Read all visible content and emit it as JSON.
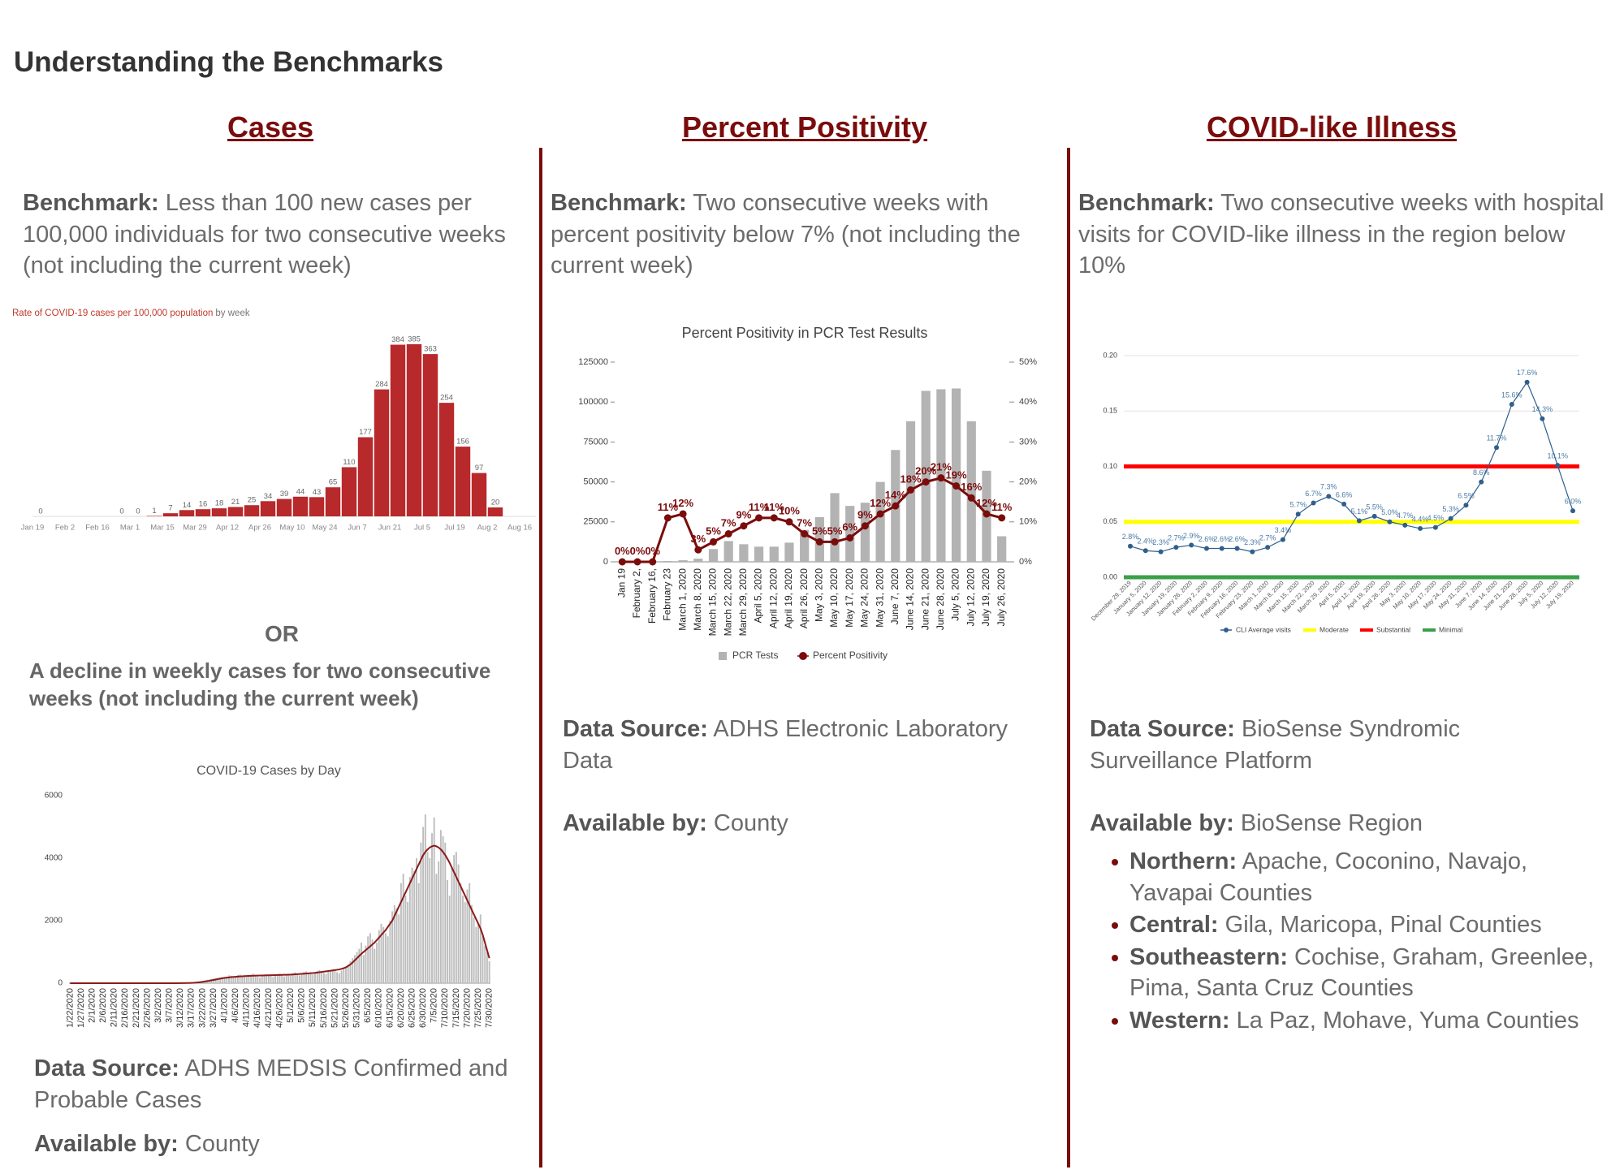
{
  "title": "Understanding the Benchmarks",
  "columns": [
    {
      "heading": "Cases",
      "benchmark_label": "Benchmark:",
      "benchmark": "Less than 100 new cases per 100,000 individuals for two consecutive weeks (not including the current week)",
      "or": "OR",
      "alternative": "A decline in weekly cases for two consecutive weeks (not including the current week)",
      "source_label": "Data Source:",
      "source": "ADHS MEDSIS Confirmed and Probable Cases",
      "available_label": "Available by:",
      "available": "County"
    },
    {
      "heading": "Percent Positivity",
      "benchmark_label": "Benchmark:",
      "benchmark": "Two consecutive weeks with percent positivity below 7% (not including the current week)",
      "source_label": "Data Source:",
      "source": "ADHS Electronic Laboratory Data",
      "available_label": "Available by:",
      "available": "County"
    },
    {
      "heading": "COVID-like Illness",
      "benchmark_label": "Benchmark:",
      "benchmark": "Two consecutive weeks with hospital visits for COVID-like illness in the region below 10%",
      "source_label": "Data Source:",
      "source": "BioSense Syndromic Surveillance Platform",
      "available_label": "Available by:",
      "available": "BioSense Region",
      "regions": [
        {
          "name": "Northern:",
          "counties": "Apache, Coconino, Navajo, Yavapai Counties"
        },
        {
          "name": "Central:",
          "counties": "Gila, Maricopa, Pinal Counties"
        },
        {
          "name": "Southeastern:",
          "counties": "Cochise, Graham, Greenlee, Pima, Santa Cruz Counties"
        },
        {
          "name": "Western:",
          "counties": "La Paz, Mohave, Yuma Counties"
        }
      ]
    }
  ],
  "chart_data": [
    {
      "type": "bar",
      "title": "Rate of COVID-19 cases per 100,000 population",
      "subtitle": "by week",
      "color": "#b8292b",
      "data_labels": true,
      "categories": [
        "Jan 19",
        null,
        "Feb 2",
        null,
        "Feb 16",
        null,
        "Mar 1",
        null,
        "Mar 15",
        null,
        "Mar 29",
        null,
        "Apr 12",
        null,
        "Apr 26",
        null,
        "May 10",
        null,
        "May 24",
        null,
        "Jun 7",
        null,
        "Jun 21",
        null,
        "Jul 5",
        null,
        "Jul 19",
        null,
        "Aug 2",
        null,
        "Aug 16"
      ],
      "values": [
        0,
        null,
        null,
        null,
        null,
        0,
        0,
        1,
        7,
        14,
        16,
        18,
        21,
        25,
        34,
        39,
        44,
        43,
        65,
        110,
        177,
        284,
        384,
        385,
        363,
        254,
        156,
        97,
        20,
        null,
        null
      ]
    },
    {
      "type": "bar",
      "title": "COVID-19 Cases by Day",
      "ylim": [
        0,
        6000
      ],
      "yticks": [
        0,
        2000,
        4000,
        6000
      ],
      "categories": [
        "1/22/2020",
        null,
        null,
        null,
        null,
        "1/27/2020",
        null,
        null,
        null,
        null,
        "2/1/2020",
        null,
        null,
        null,
        null,
        "2/6/2020",
        null,
        null,
        null,
        null,
        "2/11/2020",
        null,
        null,
        null,
        null,
        "2/16/2020",
        null,
        null,
        null,
        null,
        "2/21/2020",
        null,
        null,
        null,
        null,
        "2/26/2020",
        null,
        null,
        null,
        null,
        "3/2/2020",
        null,
        null,
        null,
        null,
        "3/7/2020",
        null,
        null,
        null,
        null,
        "3/12/2020",
        null,
        null,
        null,
        null,
        "3/17/2020",
        null,
        null,
        null,
        null,
        "3/22/2020",
        null,
        null,
        null,
        null,
        "3/27/2020",
        null,
        null,
        null,
        null,
        "4/1/2020",
        null,
        null,
        null,
        null,
        "4/6/2020",
        null,
        null,
        null,
        null,
        "4/11/2020",
        null,
        null,
        null,
        null,
        "4/16/2020",
        null,
        null,
        null,
        null,
        "4/21/2020",
        null,
        null,
        null,
        null,
        "4/26/2020",
        null,
        null,
        null,
        null,
        "5/1/2020",
        null,
        null,
        null,
        null,
        "5/6/2020",
        null,
        null,
        null,
        null,
        "5/11/2020",
        null,
        null,
        null,
        null,
        "5/16/2020",
        null,
        null,
        null,
        null,
        "5/21/2020",
        null,
        null,
        null,
        null,
        "5/26/2020",
        null,
        null,
        null,
        null,
        "5/31/2020",
        null,
        null,
        null,
        null,
        "6/5/2020",
        null,
        null,
        null,
        null,
        "6/10/2020",
        null,
        null,
        null,
        null,
        "6/15/2020",
        null,
        null,
        null,
        null,
        "6/20/2020",
        null,
        null,
        null,
        null,
        "6/25/2020",
        null,
        null,
        null,
        null,
        "6/30/2020",
        null,
        null,
        null,
        null,
        "7/5/2020",
        null,
        null,
        null,
        null,
        "7/10/2020",
        null,
        null,
        null,
        null,
        "7/15/2020",
        null,
        null,
        null,
        null,
        "7/20/2020",
        null,
        null,
        null,
        null,
        "7/25/2020",
        null,
        null,
        null,
        null,
        "7/30/2020"
      ],
      "series": [
        {
          "type": "bar",
          "color": "#bdbdbd",
          "values": [
            0,
            0,
            0,
            0,
            1,
            0,
            0,
            0,
            0,
            0,
            0,
            0,
            0,
            0,
            0,
            0,
            0,
            0,
            0,
            0,
            0,
            0,
            0,
            0,
            0,
            0,
            0,
            0,
            0,
            0,
            0,
            0,
            0,
            0,
            0,
            0,
            0,
            0,
            0,
            0,
            0,
            0,
            0,
            0,
            0,
            0,
            0,
            0,
            0,
            2,
            3,
            5,
            4,
            6,
            12,
            18,
            26,
            40,
            50,
            60,
            75,
            90,
            110,
            120,
            140,
            150,
            160,
            170,
            180,
            190,
            200,
            210,
            250,
            240,
            180,
            220,
            260,
            280,
            240,
            230,
            200,
            250,
            270,
            300,
            260,
            210,
            180,
            220,
            250,
            280,
            240,
            230,
            200,
            260,
            290,
            310,
            270,
            220,
            260,
            300,
            280,
            320,
            350,
            300,
            250,
            330,
            360,
            380,
            340,
            310,
            280,
            350,
            390,
            420,
            380,
            330,
            300,
            370,
            410,
            440,
            400,
            350,
            320,
            400,
            450,
            500,
            600,
            700,
            800,
            900,
            1000,
            1100,
            1300,
            900,
            1200,
            1500,
            1600,
            1400,
            1100,
            1300,
            1700,
            1900,
            1800,
            1600,
            1500,
            2000,
            2300,
            2500,
            2400,
            2200,
            3200,
            3500,
            2800,
            2600,
            3400,
            3700,
            3600,
            4000,
            3200,
            4500,
            5000,
            5400,
            4200,
            4000,
            4800,
            5300,
            3500,
            3900,
            4900,
            4700,
            4500,
            3300,
            2800,
            3700,
            4100,
            4200,
            3800,
            3200,
            2800,
            2600,
            3000,
            3200,
            2500,
            2100,
            1800,
            1900,
            2200,
            1500,
            1200,
            1000,
            700
          ]
        },
        {
          "type": "line",
          "color": "#8b1a1a",
          "values": [
            0,
            0,
            0,
            0,
            0,
            0,
            0,
            0,
            0,
            0,
            0,
            0,
            0,
            0,
            0,
            0,
            0,
            0,
            0,
            0,
            0,
            0,
            0,
            0,
            0,
            0,
            0,
            0,
            0,
            0,
            0,
            0,
            0,
            0,
            0,
            0,
            0,
            0,
            0,
            0,
            0,
            0,
            0,
            0,
            0,
            0,
            0,
            0,
            0,
            1,
            2,
            3,
            4,
            5,
            7,
            10,
            14,
            20,
            26,
            33,
            42,
            52,
            64,
            76,
            90,
            104,
            118,
            132,
            146,
            160,
            170,
            178,
            186,
            194,
            200,
            206,
            212,
            218,
            222,
            226,
            230,
            234,
            238,
            240,
            242,
            244,
            246,
            248,
            250,
            252,
            254,
            256,
            258,
            260,
            262,
            264,
            266,
            268,
            270,
            272,
            275,
            280,
            285,
            290,
            295,
            300,
            305,
            310,
            315,
            320,
            325,
            330,
            340,
            350,
            360,
            370,
            380,
            390,
            400,
            410,
            420,
            430,
            440,
            460,
            480,
            510,
            550,
            600,
            660,
            730,
            800,
            870,
            940,
            1000,
            1060,
            1120,
            1180,
            1240,
            1300,
            1380,
            1460,
            1540,
            1620,
            1700,
            1800,
            1900,
            2000,
            2150,
            2300,
            2450,
            2600,
            2750,
            2900,
            3050,
            3200,
            3350,
            3500,
            3650,
            3800,
            3950,
            4100,
            4200,
            4280,
            4340,
            4380,
            4400,
            4380,
            4340,
            4280,
            4200,
            4100,
            3980,
            3850,
            3700,
            3550,
            3400,
            3250,
            3100,
            2950,
            2800,
            2650,
            2500,
            2350,
            2200,
            2050,
            1900,
            1750,
            1550,
            1300,
            1050,
            800
          ]
        }
      ]
    },
    {
      "type": "bar",
      "title": "Percent Positivity in PCR Test Results",
      "ylim": [
        0,
        125000
      ],
      "yticks": [
        0,
        25000,
        50000,
        75000,
        100000,
        125000
      ],
      "y2lim": [
        0,
        50
      ],
      "y2ticks": [
        {
          "value": 0,
          "label": "0%"
        },
        {
          "value": 10,
          "label": "10%"
        },
        {
          "value": 20,
          "label": "20%"
        },
        {
          "value": 30,
          "label": "30%"
        },
        {
          "value": 40,
          "label": "40%"
        },
        {
          "value": 50,
          "label": "50%"
        }
      ],
      "categories": [
        "Jan 19",
        "February 2,",
        "February 16,",
        "February 23",
        "March 1, 2020",
        "March 8, 2020",
        "March 15, 2020",
        "March 22, 2020",
        "March 29, 2020",
        "April 5, 2020",
        "April 12, 2020",
        "April 19, 2020",
        "April 26, 2020",
        "May 3, 2020",
        "May 10, 2020",
        "May 17, 2020",
        "May 24, 2020",
        "May 31, 2020",
        "June 7, 2020",
        "June 14, 2020",
        "June 21, 2020",
        "June 28, 2020",
        "July 5, 2020",
        "July 12, 2020",
        "July 19, 2020",
        "July 26, 2020"
      ],
      "series": [
        {
          "name": "PCR Tests",
          "type": "bar",
          "color": "#b3b3b3",
          "values": [
            0,
            0,
            0,
            500,
            1000,
            2000,
            8000,
            13000,
            11000,
            9500,
            9500,
            12000,
            20000,
            28000,
            43000,
            35000,
            37000,
            50000,
            70000,
            88000,
            107000,
            108000,
            108500,
            88000,
            57000,
            16000
          ]
        },
        {
          "name": "Percent Positivity",
          "type": "line",
          "axis": "y2",
          "color": "#7b0c0c",
          "markers": true,
          "values": [
            0,
            0,
            0,
            11,
            12,
            3,
            5,
            7,
            9,
            11,
            11,
            10,
            7,
            5,
            5,
            6,
            9,
            12,
            14,
            18,
            20,
            21,
            19,
            16,
            12,
            11
          ],
          "value_labels": [
            "0%",
            "0%",
            "0%",
            "11%",
            "12%",
            "3%",
            "5%",
            "7%",
            "9%",
            "11%",
            "11%",
            "10%",
            "7%",
            "5%",
            "5%",
            "6%",
            "9%",
            "12%",
            "14%",
            "18%",
            "20%",
            "21%",
            "19%",
            "16%",
            "12%",
            "11%"
          ]
        }
      ]
    },
    {
      "type": "line",
      "grid": true,
      "ylim": [
        0,
        0.2
      ],
      "yticks": [
        {
          "value": 0,
          "label": "0.00"
        },
        0.05,
        {
          "value": 0.1,
          "label": "0.10"
        },
        0.15,
        {
          "value": 0.2,
          "label": "0.20"
        }
      ],
      "categories": [
        "December 29, 2019",
        "January 5, 2020",
        "January 12, 2020",
        "January 19, 2020",
        "January 26, 2020",
        "February 2, 2020",
        "February 9, 2020",
        "February 16, 2020",
        "February 23, 2020",
        "March 1, 2020",
        "March 8, 2020",
        "March 15, 2020",
        "March 22, 2020",
        "March 29, 2020",
        "April 5, 2020",
        "April 12, 2020",
        "April 19, 2020",
        "April 26, 2020",
        "May 3, 2020",
        "May 10, 2020",
        "May 17, 2020",
        "May 24, 2020",
        "May 31, 2020",
        "June 7, 2020",
        "June 14, 2020",
        "June 21, 2020",
        "June 28, 2020",
        "July 5, 2020",
        "July 12, 2020",
        "July 19, 2020"
      ],
      "thresholds": [
        {
          "name": "Moderate",
          "value": 0.05,
          "color": "#ffff00"
        },
        {
          "name": "Substantial",
          "value": 0.1,
          "color": "#ff0000"
        },
        {
          "name": "Minimal",
          "value": 0,
          "color": "#3aa04a"
        }
      ],
      "series": [
        {
          "name": "CLI Average visits",
          "type": "line",
          "color": "#2f5f8c",
          "markers": true,
          "values": [
            0.028,
            0.024,
            0.023,
            0.027,
            0.029,
            0.026,
            0.026,
            0.026,
            0.023,
            0.027,
            0.034,
            0.057,
            0.067,
            0.073,
            0.066,
            0.051,
            0.055,
            0.05,
            0.047,
            0.044,
            0.045,
            0.053,
            0.065,
            0.086,
            0.117,
            0.156,
            0.176,
            0.143,
            0.101,
            0.06
          ],
          "value_labels": [
            "2.8%",
            "2.4%",
            "2.3%",
            "2.7%",
            "2.9%",
            "2.6%",
            "2.6%",
            "2.6%",
            "2.3%",
            "2.7%",
            "3.4%",
            "5.7%",
            "6.7%",
            "7.3%",
            "6.6%",
            "5.1%",
            "5.5%",
            "5.0%",
            "4.7%",
            "4.4%",
            "4.5%",
            "5.3%",
            "6.5%",
            "8.6%",
            "11.7%",
            "15.6%",
            "17.6%",
            "14.3%",
            "10.1%",
            "6.0%"
          ]
        }
      ]
    }
  ]
}
